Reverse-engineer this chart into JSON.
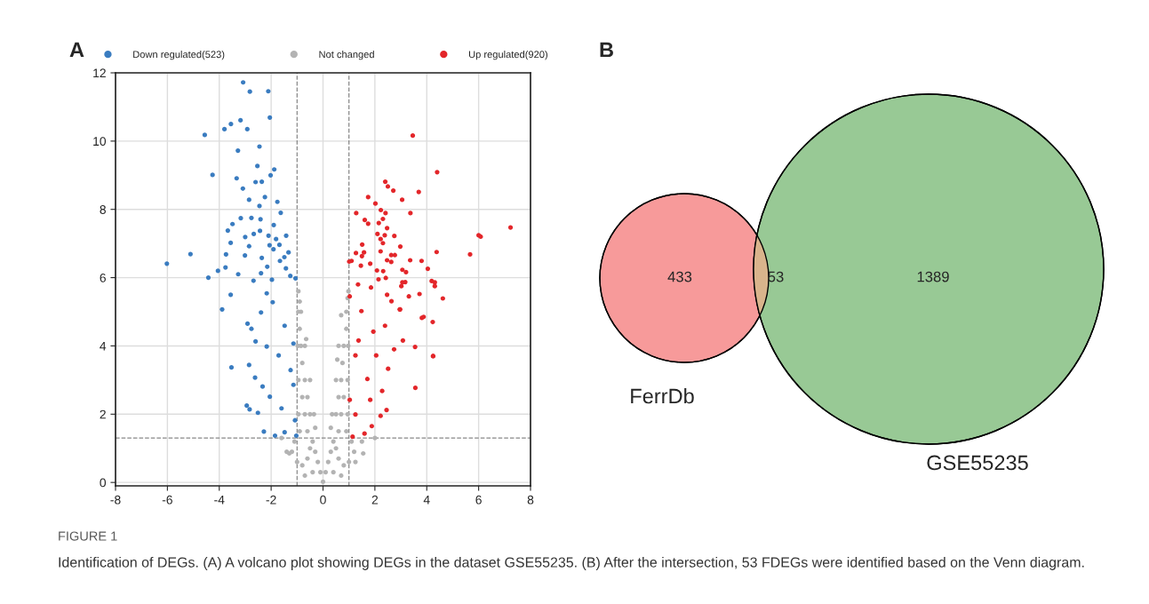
{
  "chart_data": [
    {
      "type": "scatter",
      "title": "A",
      "xlim": [
        -8,
        8
      ],
      "ylim": [
        -0.1,
        12
      ],
      "xticks": [
        -8,
        -6,
        -4,
        -2,
        0,
        2,
        4,
        6,
        8
      ],
      "yticks": [
        0,
        2,
        4,
        6,
        8,
        10,
        12
      ],
      "grid": true,
      "legend": "top",
      "marker": "circle",
      "ref_lines": [
        {
          "axis": "x",
          "value": -1,
          "color": "#888888",
          "line_style": "dashed"
        },
        {
          "axis": "x",
          "value": 1,
          "color": "#888888",
          "line_style": "dashed"
        },
        {
          "axis": "y",
          "value": 1.3,
          "color": "#888888",
          "line_style": "dashed"
        }
      ],
      "annotations": [
        "FIGURE 1",
        "Identification of DEGs. (A) A volcano plot showing DEGs in the dataset GSE55235. (B) After the intersection, 53 FDEGs were identified based on the Venn diagram."
      ],
      "series": [
        {
          "name": "Down regulated(523)",
          "color": "#3a7cc0",
          "x": [
            -3.08,
            -2.82,
            -2.11,
            -2.05,
            -4.56,
            -3.8,
            -3.55,
            -3.18,
            -2.92,
            -2.45,
            -3.28,
            -4.26,
            -2.53,
            -1.88,
            -2.02,
            -3.33,
            -3.09,
            -2.6,
            -2.36,
            -2.85,
            -2.24,
            -2.45,
            -1.76,
            -1.63,
            -3.17,
            -2.76,
            -2.41,
            -3.67,
            -3.49,
            -2.43,
            -1.9,
            -3.56,
            -3.0,
            -2.67,
            -2.1,
            -1.42,
            -1.81,
            -2.85,
            -2.06,
            -1.68,
            -3.74,
            -5.11,
            -3.01,
            -2.36,
            -1.91,
            -1.33,
            -1.66,
            -1.49,
            -6.02,
            -3.76,
            -4.05,
            -4.42,
            -3.27,
            -2.15,
            -1.43,
            -1.26,
            -1.06,
            -2.39,
            -1.97,
            -2.68,
            -3.56,
            -3.89,
            -2.39,
            -2.91,
            -2.76,
            -3.53,
            -2.85,
            -2.62,
            -2.33,
            -2.94,
            -2.83,
            -2.51,
            -2.28,
            -1.85,
            -2.6,
            -2.17,
            -1.71,
            -1.94,
            -1.48,
            -1.14,
            -1.14,
            -1.08,
            -1.48,
            -1.03,
            -2.05,
            -1.6,
            -1.25,
            -2.17
          ],
          "values": [
            11.72,
            11.45,
            11.46,
            10.69,
            10.18,
            10.35,
            10.5,
            10.61,
            10.35,
            9.84,
            9.72,
            9.01,
            9.27,
            9.17,
            9.0,
            8.91,
            8.61,
            8.8,
            8.81,
            8.28,
            8.36,
            8.1,
            8.22,
            7.9,
            7.74,
            7.75,
            7.71,
            7.38,
            7.57,
            7.37,
            7.54,
            7.02,
            7.19,
            7.28,
            7.23,
            7.23,
            7.13,
            6.92,
            6.95,
            6.96,
            6.68,
            6.69,
            6.65,
            6.58,
            6.83,
            6.74,
            6.49,
            6.6,
            6.41,
            6.3,
            6.2,
            6.0,
            6.1,
            6.32,
            6.27,
            6.05,
            5.98,
            6.13,
            5.94,
            5.91,
            5.5,
            5.07,
            4.98,
            4.65,
            4.5,
            3.37,
            3.44,
            3.07,
            2.81,
            2.25,
            2.14,
            2.04,
            1.49,
            1.37,
            4.13,
            3.98,
            3.72,
            5.28,
            4.59,
            4.07,
            2.86,
            1.82,
            1.47,
            1.37,
            2.51,
            2.17,
            3.29,
            5.54
          ]
        },
        {
          "name": "Not changed",
          "color": "#b3b3b3",
          "x": [
            0,
            -0.1,
            0.1,
            -0.2,
            0.2,
            -0.3,
            0.3,
            -0.4,
            0.4,
            -0.5,
            0.5,
            -0.6,
            0.6,
            -0.8,
            0.8,
            -1.0,
            1.0,
            -1.2,
            1.2,
            -1.4,
            -1.3,
            1.55,
            1.25,
            2.0,
            -0.4,
            0.4,
            -0.7,
            0.7,
            -1.1,
            1.1,
            1.5,
            -1.6,
            -0.35,
            -0.5,
            -0.7,
            -0.95,
            -0.5,
            -0.7,
            -0.95,
            -0.7,
            -0.85,
            -0.97,
            -0.85,
            -0.95,
            -0.9,
            -0.95,
            -0.3,
            -0.6,
            -0.9,
            -0.6,
            -0.8,
            -0.8,
            -0.9,
            -0.65,
            0.35,
            0.5,
            0.7,
            0.95,
            0.5,
            0.7,
            0.95,
            0.6,
            0.8,
            0.97,
            0.7,
            0.9,
            0.95,
            0.98,
            0.3,
            0.6,
            0.9,
            0.6,
            0.8,
            0.75,
            0.9,
            0.55
          ],
          "values": [
            0.02,
            0.3,
            0.3,
            0.6,
            0.6,
            0.9,
            0.9,
            1.2,
            1.2,
            1.0,
            1.0,
            0.7,
            0.7,
            0.5,
            0.5,
            0.6,
            0.6,
            0.9,
            0.9,
            0.9,
            0.85,
            0.85,
            0.6,
            1.3,
            0.3,
            0.3,
            0.2,
            0.2,
            1.2,
            1.2,
            1.2,
            1.3,
            2.0,
            2.0,
            2.0,
            2.0,
            3.0,
            3.0,
            3.0,
            4.0,
            4.0,
            4.0,
            5.0,
            5.0,
            5.3,
            5.6,
            1.6,
            1.5,
            1.5,
            2.5,
            2.5,
            3.5,
            4.5,
            4.2,
            2.0,
            2.0,
            2.0,
            2.0,
            3.0,
            3.0,
            3.0,
            4.0,
            4.0,
            4.0,
            4.9,
            5.0,
            5.4,
            5.6,
            1.6,
            1.5,
            1.5,
            2.5,
            2.5,
            3.5,
            4.5,
            3.6
          ]
        },
        {
          "name": "Up regulated(920)",
          "color": "#e3262a",
          "x": [
            3.46,
            4.4,
            2.4,
            2.5,
            2.71,
            3.69,
            1.74,
            3.05,
            2.02,
            1.28,
            2.23,
            2.41,
            3.37,
            1.61,
            2.15,
            2.31,
            1.74,
            2.47,
            7.23,
            6.0,
            6.08,
            2.1,
            2.38,
            2.75,
            2.22,
            2.31,
            1.51,
            2.98,
            1.27,
            1.58,
            2.22,
            4.38,
            5.67,
            2.63,
            2.77,
            1.5,
            2.47,
            2.63,
            3.36,
            3.8,
            1.01,
            1.1,
            1.82,
            1.46,
            4.04,
            3.06,
            3.2,
            2.08,
            2.32,
            4.19,
            4.31,
            4.31,
            4.62,
            3.06,
            3.17,
            3.02,
            3.72,
            2.42,
            2.14,
            1.85,
            1.35,
            3.81,
            4.23,
            4.24,
            3.55,
            2.97,
            2.64,
            2.47,
            3.56,
            4.25,
            2.74,
            2.51,
            2.28,
            2.45,
            2.22,
            1.88,
            1.6,
            1.14,
            1.25,
            1.71,
            1.94,
            1.48,
            2.39,
            3.31,
            2.96,
            1.25,
            1.03,
            1.82,
            1.03,
            1.37,
            3.08,
            3.88,
            2.05
          ],
          "values": [
            10.16,
            9.09,
            8.81,
            8.67,
            8.55,
            8.51,
            8.36,
            8.28,
            8.17,
            7.89,
            7.98,
            7.89,
            7.89,
            7.69,
            7.6,
            7.72,
            7.58,
            7.45,
            7.47,
            7.24,
            7.2,
            7.28,
            7.24,
            7.22,
            7.13,
            7.01,
            6.97,
            6.91,
            6.72,
            6.74,
            6.77,
            6.75,
            6.68,
            6.66,
            6.66,
            6.63,
            6.51,
            6.46,
            6.51,
            6.49,
            6.47,
            6.49,
            6.41,
            6.35,
            6.26,
            6.23,
            6.16,
            6.21,
            6.19,
            5.9,
            5.86,
            5.75,
            5.39,
            5.86,
            5.87,
            5.75,
            5.52,
            5.99,
            5.95,
            5.71,
            5.8,
            4.82,
            4.7,
            3.7,
            3.97,
            5.07,
            5.31,
            5.5,
            2.77,
            3.7,
            3.9,
            3.33,
            2.68,
            2.12,
            1.95,
            1.65,
            1.43,
            1.34,
            3.72,
            3.03,
            4.42,
            5.02,
            4.59,
            5.45,
            5.07,
            1.99,
            2.42,
            2.42,
            5.45,
            4.16,
            4.16,
            4.85,
            3.72
          ]
        }
      ]
    },
    {
      "type": "other",
      "title": "B",
      "categories": [
        "FerrDb",
        null,
        "GSE55235"
      ],
      "values": [
        433,
        53,
        1389
      ],
      "data_labels": true,
      "colors": [
        "#f79a9a",
        "#d9b48c",
        "#98c995"
      ]
    }
  ]
}
